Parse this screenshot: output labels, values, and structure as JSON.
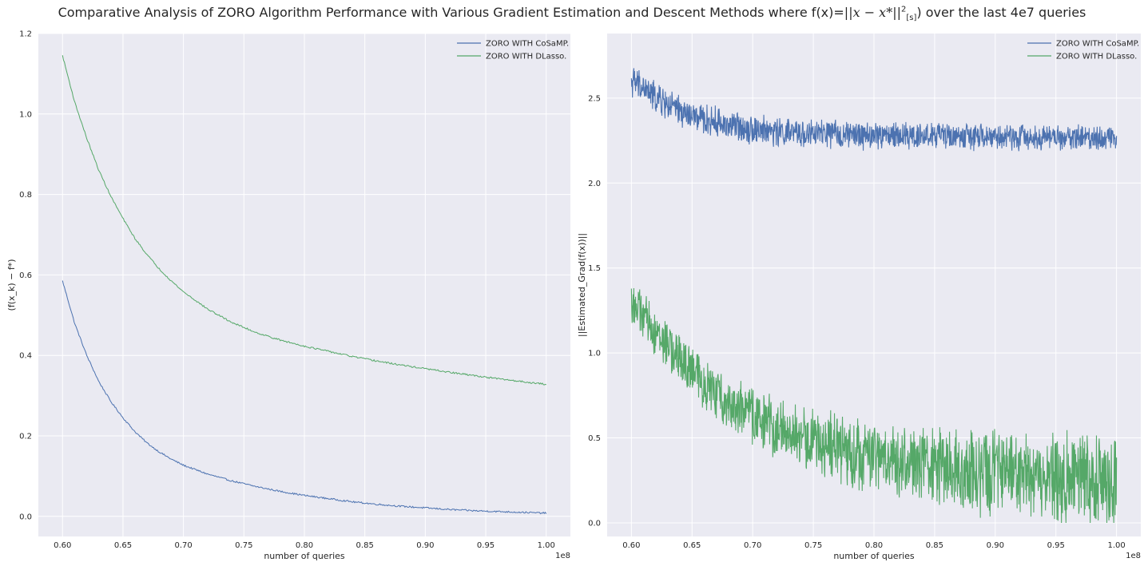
{
  "figure": {
    "title_prefix": "Comparative Analysis of ZORO Algorithm Performance with Various Gradient Estimation and Descent Methods where f(x)=",
    "title_norm": "||x − x*||",
    "title_sup": "2",
    "title_sub": "[s]",
    "title_suffix": ") over the last 4e7 queries",
    "background": "#EAEAF2",
    "grid_color": "#FFFFFF"
  },
  "chart_data": [
    {
      "type": "line",
      "xlabel": "number of queries",
      "ylabel": "(f(x_k) − f*)",
      "x_offset_label": "1e8",
      "xlim": [
        0.58,
        1.02
      ],
      "ylim": [
        -0.05,
        1.2
      ],
      "xticks": [
        0.6,
        0.65,
        0.7,
        0.75,
        0.8,
        0.85,
        0.9,
        0.95,
        1.0
      ],
      "xtick_labels": [
        "0.60",
        "0.65",
        "0.70",
        "0.75",
        "0.80",
        "0.85",
        "0.90",
        "0.95",
        "1.00"
      ],
      "yticks": [
        0.0,
        0.2,
        0.4,
        0.6,
        0.8,
        1.0,
        1.2
      ],
      "ytick_labels": [
        "0.0",
        "0.2",
        "0.4",
        "0.6",
        "0.8",
        "1.0",
        "1.2"
      ],
      "grid": true,
      "legend": "top-right",
      "series": [
        {
          "name": "ZORO WITH CoSaMP.",
          "color": "#4C72B0",
          "x": [
            0.6,
            0.61,
            0.62,
            0.63,
            0.64,
            0.65,
            0.66,
            0.67,
            0.68,
            0.69,
            0.7,
            0.72,
            0.74,
            0.76,
            0.78,
            0.8,
            0.82,
            0.84,
            0.86,
            0.88,
            0.9,
            0.92,
            0.94,
            0.96,
            0.98,
            1.0
          ],
          "y": [
            0.585,
            0.48,
            0.4,
            0.335,
            0.285,
            0.245,
            0.21,
            0.182,
            0.16,
            0.142,
            0.127,
            0.105,
            0.088,
            0.074,
            0.062,
            0.052,
            0.044,
            0.036,
            0.03,
            0.025,
            0.021,
            0.017,
            0.014,
            0.012,
            0.01,
            0.008
          ]
        },
        {
          "name": "ZORO WITH DLasso.",
          "color": "#55A868",
          "x": [
            0.6,
            0.61,
            0.62,
            0.63,
            0.64,
            0.65,
            0.66,
            0.67,
            0.68,
            0.69,
            0.7,
            0.72,
            0.74,
            0.76,
            0.78,
            0.8,
            0.82,
            0.84,
            0.86,
            0.88,
            0.9,
            0.92,
            0.94,
            0.96,
            0.98,
            1.0
          ],
          "y": [
            1.145,
            1.03,
            0.94,
            0.86,
            0.795,
            0.74,
            0.69,
            0.65,
            0.615,
            0.585,
            0.558,
            0.515,
            0.482,
            0.457,
            0.438,
            0.423,
            0.41,
            0.397,
            0.386,
            0.376,
            0.367,
            0.358,
            0.35,
            0.342,
            0.335,
            0.328
          ]
        }
      ]
    },
    {
      "type": "line",
      "xlabel": "number of queries",
      "ylabel": "||Estimated_Grad(f(x))||",
      "x_offset_label": "1e8",
      "xlim": [
        0.58,
        1.02
      ],
      "ylim": [
        -0.08,
        2.88
      ],
      "xticks": [
        0.6,
        0.65,
        0.7,
        0.75,
        0.8,
        0.85,
        0.9,
        0.95,
        1.0
      ],
      "xtick_labels": [
        "0.60",
        "0.65",
        "0.70",
        "0.75",
        "0.80",
        "0.85",
        "0.90",
        "0.95",
        "1.00"
      ],
      "yticks": [
        0.0,
        0.5,
        1.0,
        1.5,
        2.0,
        2.5
      ],
      "ytick_labels": [
        "0.0",
        "0.5",
        "1.0",
        "1.5",
        "2.0",
        "2.5"
      ],
      "grid": true,
      "legend": "top-right",
      "series": [
        {
          "name": "ZORO WITH CoSaMP.",
          "color": "#4C72B0",
          "x": [
            0.6,
            0.61,
            0.62,
            0.63,
            0.64,
            0.65,
            0.66,
            0.67,
            0.68,
            0.69,
            0.7,
            0.72,
            0.74,
            0.76,
            0.78,
            0.8,
            0.82,
            0.84,
            0.86,
            0.88,
            0.9,
            0.92,
            0.94,
            0.96,
            0.98,
            1.0
          ],
          "y": [
            2.6,
            2.56,
            2.5,
            2.46,
            2.42,
            2.39,
            2.37,
            2.36,
            2.34,
            2.33,
            2.32,
            2.3,
            2.29,
            2.29,
            2.28,
            2.28,
            2.28,
            2.28,
            2.28,
            2.27,
            2.27,
            2.27,
            2.27,
            2.27,
            2.27,
            2.27
          ],
          "noise_amplitude": 0.08
        },
        {
          "name": "ZORO WITH DLasso.",
          "color": "#55A868",
          "x": [
            0.6,
            0.61,
            0.62,
            0.63,
            0.64,
            0.65,
            0.66,
            0.67,
            0.68,
            0.69,
            0.7,
            0.72,
            0.74,
            0.76,
            0.78,
            0.8,
            0.82,
            0.84,
            0.86,
            0.88,
            0.9,
            0.92,
            0.94,
            0.96,
            0.98,
            1.0
          ],
          "y": [
            1.3,
            1.22,
            1.12,
            1.04,
            0.96,
            0.89,
            0.82,
            0.76,
            0.71,
            0.67,
            0.63,
            0.56,
            0.5,
            0.46,
            0.42,
            0.39,
            0.36,
            0.34,
            0.32,
            0.3,
            0.29,
            0.28,
            0.27,
            0.26,
            0.25,
            0.25
          ],
          "noise_amplitude": 0.2
        }
      ]
    }
  ]
}
